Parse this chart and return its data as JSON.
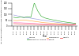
{
  "years": [
    2000,
    2001,
    2002,
    2003,
    2004,
    2005,
    2006,
    2007,
    2008,
    2009,
    2010,
    2011,
    2012,
    2013,
    2014,
    2015,
    2016,
    2017,
    2018
  ],
  "series": {
    "Caldas": [
      95,
      88,
      80,
      75,
      72,
      68,
      62,
      58,
      52,
      48,
      44,
      38,
      34,
      30,
      26,
      22,
      20,
      18,
      15
    ],
    "Boyacá or Arauca": [
      75,
      70,
      78,
      72,
      80,
      75,
      200,
      130,
      85,
      70,
      62,
      55,
      50,
      44,
      38,
      34,
      30,
      26,
      22
    ],
    "Magdalena": [
      48,
      46,
      50,
      52,
      48,
      44,
      40,
      36,
      32,
      28,
      26,
      24,
      22,
      20,
      18,
      16,
      14,
      12,
      12
    ],
    "Chocó": [
      30,
      28,
      28,
      26,
      25,
      24,
      22,
      20,
      18,
      16,
      15,
      14,
      12,
      11,
      10,
      9,
      8,
      8,
      8
    ],
    "Nariño": [
      20,
      19,
      18,
      17,
      16,
      15,
      14,
      13,
      12,
      11,
      10,
      10,
      9,
      9,
      8,
      8,
      7,
      7,
      18
    ]
  },
  "colors": {
    "Caldas": "#9999dd",
    "Boyacá or Arauca": "#33aa33",
    "Magdalena": "#ffaa44",
    "Chocó": "#ff88cc",
    "Nariño": "#ee4444"
  },
  "ylabel": "No. children granted marriage certificates per 10,000 16-17-year-olds",
  "xlabel": "Year",
  "ylim": [
    0,
    200
  ],
  "yticks": [
    0,
    50,
    100,
    150,
    200
  ],
  "legend_order": [
    "Caldas",
    "Boyacá or Arauca",
    "Magdalena",
    "Chocó",
    "Nariño"
  ]
}
